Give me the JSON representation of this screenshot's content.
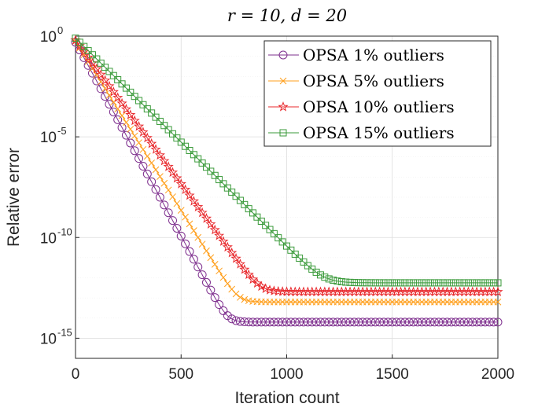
{
  "chart_data": {
    "type": "line",
    "title": "r = 10, d = 20",
    "xlabel": "Iteration count",
    "ylabel": "Relative error",
    "xlim": [
      0,
      2000
    ],
    "ylim_log10": [
      -16,
      0
    ],
    "yscale": "log",
    "grid": true,
    "legend_position": "top-right",
    "x_ticks": [
      "0",
      "500",
      "1000",
      "1500",
      "2000"
    ],
    "y_ticks": [
      {
        "base": "10",
        "exp": "0"
      },
      {
        "base": "10",
        "exp": "-5"
      },
      {
        "base": "10",
        "exp": "-10"
      },
      {
        "base": "10",
        "exp": "-15"
      }
    ],
    "series": [
      {
        "name": "OPSA 1% outliers",
        "color": "#7E2F8E",
        "marker": "circle",
        "start_log10": -0.3,
        "slope_per_iter": -0.01925,
        "floor_log10": -14.2,
        "knee_x": 720
      },
      {
        "name": "OPSA 5% outliers",
        "color": "#FF9F1C",
        "marker": "x",
        "start_log10": -0.25,
        "slope_per_iter": -0.0168,
        "floor_log10": -13.2,
        "knee_x": 770
      },
      {
        "name": "OPSA 10% outliers",
        "color": "#E8282C",
        "marker": "star",
        "start_log10": -0.2,
        "slope_per_iter": -0.01428,
        "floor_log10": -12.7,
        "knee_x": 875
      },
      {
        "name": "OPSA 15% outliers",
        "color": "#3A9A3A",
        "marker": "square",
        "start_log10": -0.1,
        "slope_per_iter": -0.01033,
        "floor_log10": -12.25,
        "knee_x": 1175
      }
    ]
  }
}
